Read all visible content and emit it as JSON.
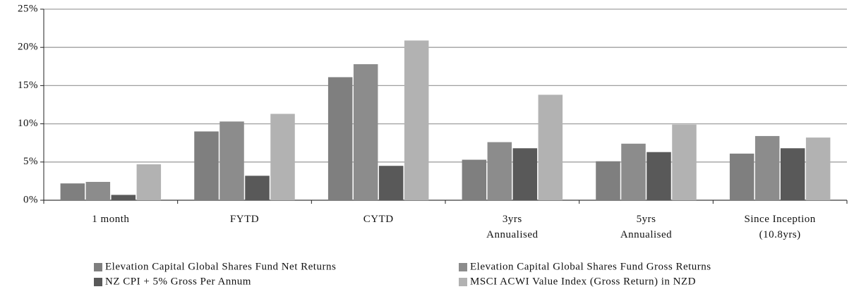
{
  "chart_data": {
    "type": "bar",
    "categories": [
      "1 month",
      "FYTD",
      "CYTD",
      "3yrs\nAnnualised",
      "5yrs\nAnnualised",
      "Since Inception\n(10.8yrs)"
    ],
    "series": [
      {
        "name": "Elevation Capital Global Shares Fund Net Returns",
        "color": "#7f7f7f",
        "values": [
          2.2,
          9.0,
          16.1,
          5.3,
          5.1,
          6.1
        ]
      },
      {
        "name": "Elevation Capital Global Shares Fund Gross Returns",
        "color": "#8c8c8c",
        "values": [
          2.4,
          10.3,
          17.8,
          7.6,
          7.4,
          8.4
        ]
      },
      {
        "name": "NZ CPI + 5% Gross Per Annum",
        "color": "#595959",
        "values": [
          0.7,
          3.2,
          4.5,
          6.8,
          6.3,
          6.8
        ]
      },
      {
        "name": "MSCI ACWI Value Index (Gross Return) in NZD",
        "color": "#b2b2b2",
        "values": [
          4.7,
          11.3,
          20.9,
          13.8,
          9.9,
          8.2
        ]
      }
    ],
    "ylim": [
      0,
      25
    ],
    "yticks": [
      {
        "value": 0,
        "label": "0%"
      },
      {
        "value": 5,
        "label": "5%"
      },
      {
        "value": 10,
        "label": "10%"
      },
      {
        "value": 15,
        "label": "15%"
      },
      {
        "value": 20,
        "label": "20%"
      },
      {
        "value": 25,
        "label": "25%"
      }
    ],
    "grid": true,
    "legend": "bottom"
  }
}
